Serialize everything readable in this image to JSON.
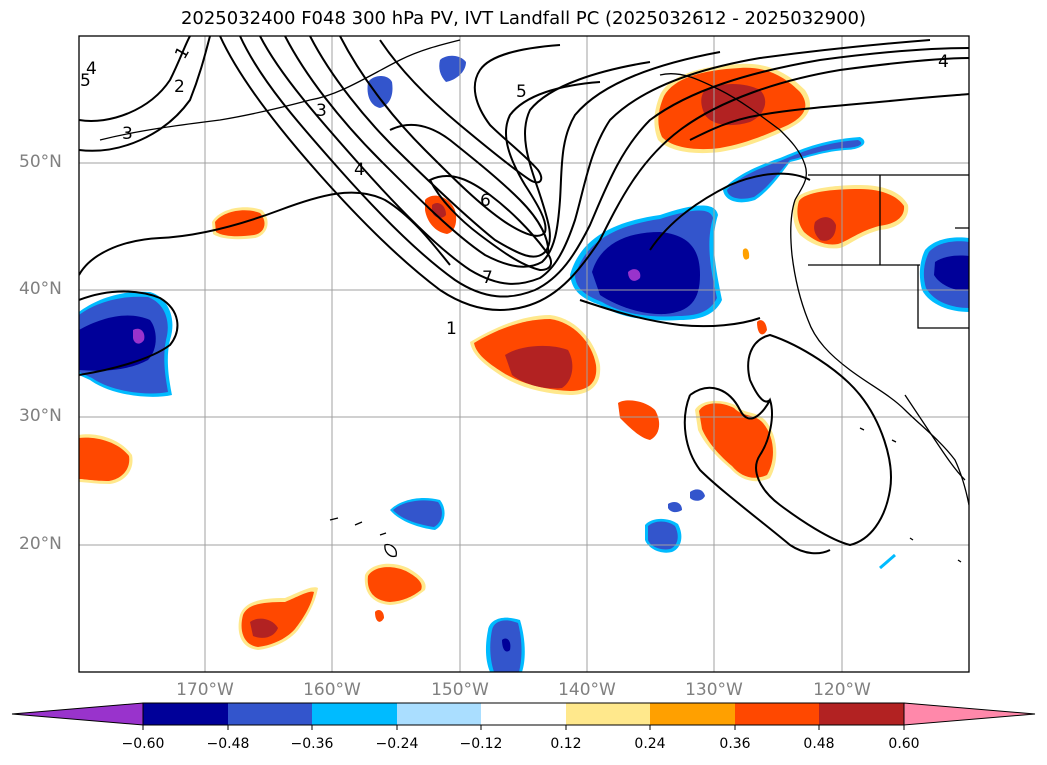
{
  "title": "2025032400 F048 300 hPa PV, IVT Landfall PC (2025032612 - 2025032900)",
  "map": {
    "lat_labels": [
      "50°N",
      "40°N",
      "30°N",
      "20°N"
    ],
    "lon_labels": [
      "170°W",
      "160°W",
      "150°W",
      "140°W",
      "130°W",
      "120°W"
    ],
    "pv_contour_labels": [
      "1",
      "2",
      "3",
      "4",
      "5",
      "6",
      "7",
      "3",
      "4",
      "5",
      "1",
      "4"
    ],
    "colors": {
      "coast": "#000000",
      "grid": "#a0a0a0",
      "contour": "#000000"
    }
  },
  "colorbar": {
    "tick_labels": [
      "−0.60",
      "−0.48",
      "−0.36",
      "−0.24",
      "−0.12",
      "0.12",
      "0.24",
      "0.36",
      "0.48",
      "0.60"
    ],
    "colors": [
      "#9933cc",
      "#000099",
      "#3355cc",
      "#00bbff",
      "#aadeff",
      "#ffffff",
      "#ffe88c",
      "#ffa000",
      "#ff4800",
      "#b22222",
      "#ff88aa"
    ]
  }
}
